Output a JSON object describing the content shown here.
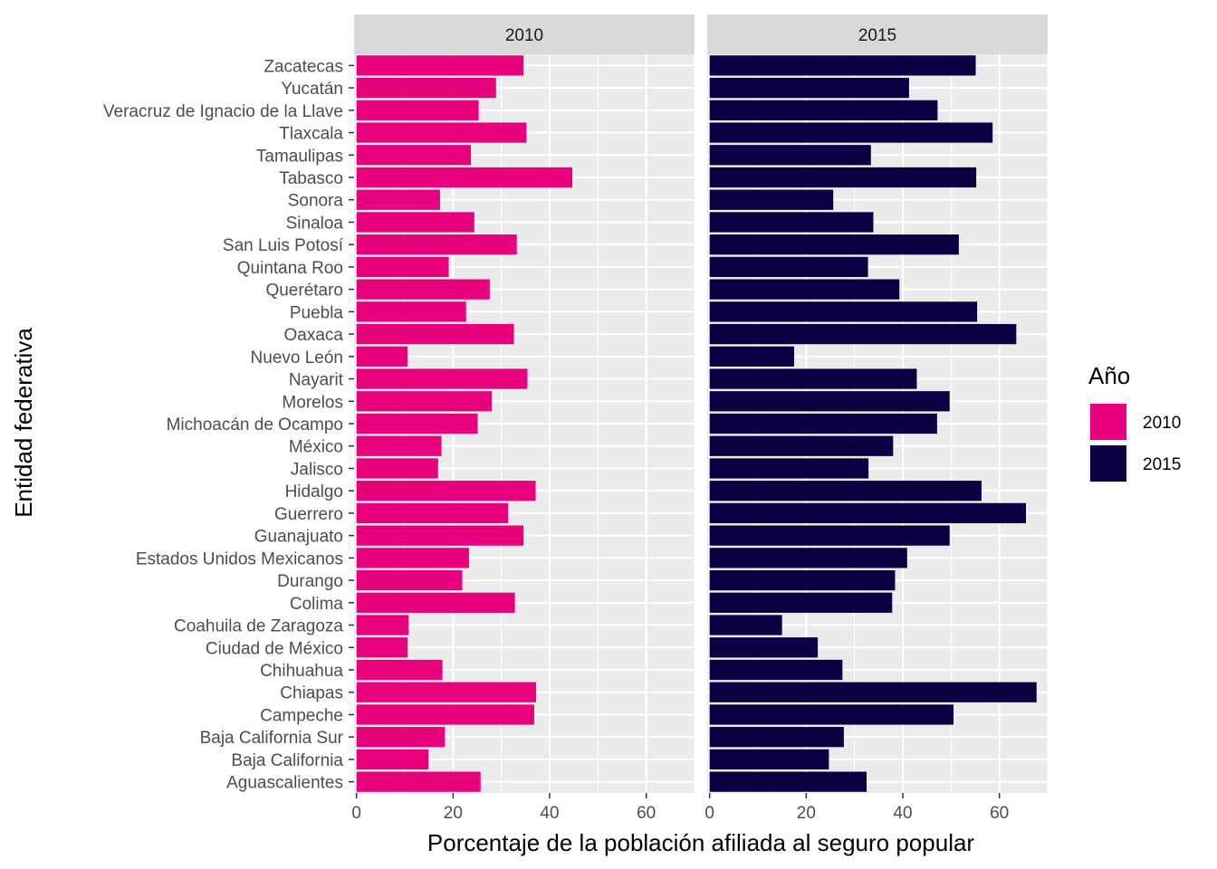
{
  "chart_data": {
    "type": "bar",
    "orientation": "horizontal",
    "xlabel": "Porcentaje de la población afiliada al seguro popular",
    "ylabel": "Entidad federativa",
    "xlim": [
      -0.5,
      70
    ],
    "x_ticks": [
      "0",
      "20",
      "40",
      "60"
    ],
    "grid": true,
    "legend": {
      "title": "Año",
      "position": "right",
      "entries": [
        "2010",
        "2015"
      ]
    },
    "colors": {
      "2010": "#E7017C",
      "2015": "#0B0142"
    },
    "categories": [
      "Zacatecas",
      "Yucatán",
      "Veracruz de Ignacio de la Llave",
      "Tlaxcala",
      "Tamaulipas",
      "Tabasco",
      "Sonora",
      "Sinaloa",
      "San Luis Potosí",
      "Quintana Roo",
      "Querétaro",
      "Puebla",
      "Oaxaca",
      "Nuevo León",
      "Nayarit",
      "Morelos",
      "Michoacán de Ocampo",
      "México",
      "Jalisco",
      "Hidalgo",
      "Guerrero",
      "Guanajuato",
      "Estados Unidos Mexicanos",
      "Durango",
      "Colima",
      "Coahuila de Zaragoza",
      "Ciudad de México",
      "Chihuahua",
      "Chiapas",
      "Campeche",
      "Baja California Sur",
      "Baja California",
      "Aguascalientes"
    ],
    "panels": [
      {
        "label": "2010",
        "values": [
          34.6,
          28.9,
          25.3,
          35.2,
          23.7,
          44.7,
          17.3,
          24.4,
          33.2,
          19.1,
          27.6,
          22.7,
          32.6,
          10.6,
          35.4,
          28.0,
          25.1,
          17.6,
          16.9,
          37.1,
          31.4,
          34.6,
          23.3,
          21.9,
          32.8,
          10.8,
          10.6,
          17.8,
          37.2,
          36.8,
          18.3,
          14.9,
          25.7
        ]
      },
      {
        "label": "2015",
        "values": [
          55.1,
          41.3,
          47.2,
          58.6,
          33.4,
          55.2,
          25.6,
          33.9,
          51.6,
          32.8,
          39.3,
          55.4,
          63.5,
          17.5,
          42.9,
          49.7,
          47.1,
          38.0,
          32.9,
          56.3,
          65.5,
          49.7,
          40.9,
          38.4,
          37.8,
          15.0,
          22.4,
          27.5,
          67.7,
          50.5,
          27.8,
          24.7,
          32.5
        ]
      }
    ]
  }
}
